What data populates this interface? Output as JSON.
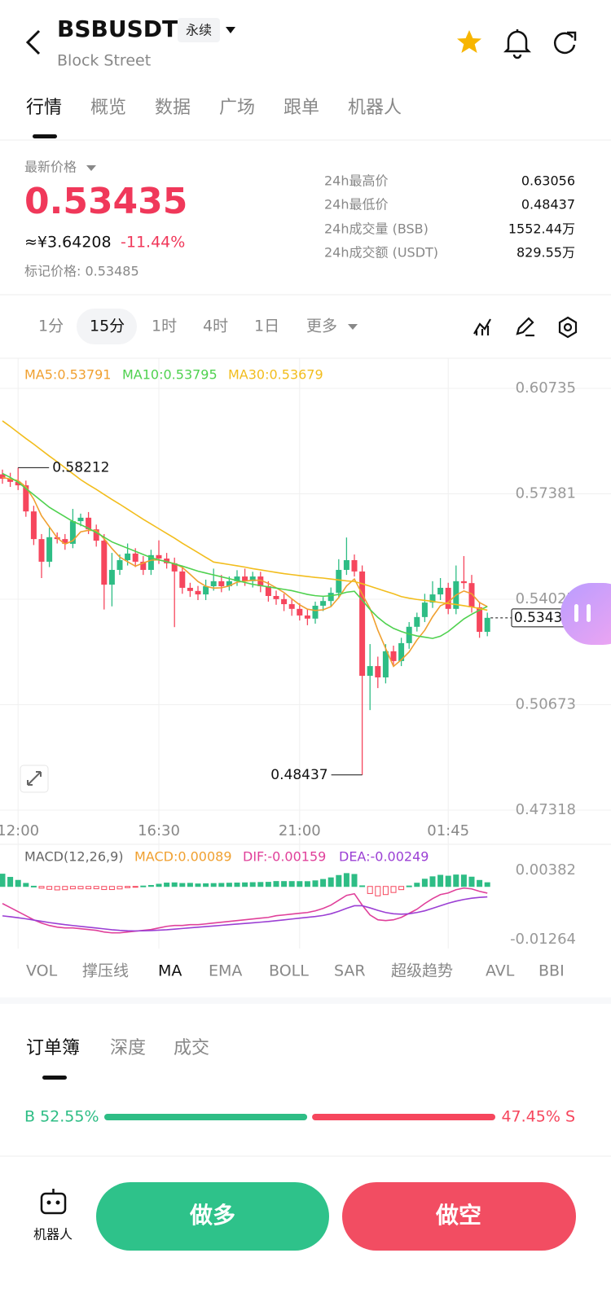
{
  "header": {
    "title": "BSBUSDT",
    "badge": "永续",
    "subtitle": "Block Street"
  },
  "tabs": [
    "行情",
    "概览",
    "数据",
    "广场",
    "跟单",
    "机器人"
  ],
  "price": {
    "label": "最新价格",
    "last": "0.53435",
    "cny": "≈¥3.64208",
    "change": "-11.44%",
    "mark": "标记价格: 0.53485"
  },
  "stats": [
    {
      "label": "24h最高价",
      "value": "0.63056"
    },
    {
      "label": "24h最低价",
      "value": "0.48437"
    },
    {
      "label": "24h成交量 (BSB)",
      "value": "1552.44万"
    },
    {
      "label": "24h成交额 (USDT)",
      "value": "829.55万"
    }
  ],
  "intervals": [
    "1分",
    "15分",
    "1时",
    "4时",
    "1日",
    "更多"
  ],
  "indicators": [
    "VOL",
    "撑压线",
    "MA",
    "EMA",
    "BOLL",
    "SAR",
    "超级趋势",
    "AVL",
    "BBI"
  ],
  "book_tabs": [
    "订单簿",
    "深度",
    "成交"
  ],
  "ratio": {
    "buy_label": "B 52.55%",
    "sell_label": "47.45% S",
    "buy": 52.55,
    "sell": 47.45,
    "buy_color": "#2ebd85",
    "sell_color": "#f6465d"
  },
  "actions": {
    "robot": "机器人",
    "long": "做多",
    "short": "做空"
  },
  "chart_data": [
    {
      "type": "candlestick",
      "up_color": "#2ebd85",
      "down_color": "#f6465d",
      "grid": true,
      "categories": [
        null,
        null,
        "12:00",
        null,
        null,
        null,
        null,
        null,
        null,
        null,
        null,
        null,
        null,
        null,
        null,
        null,
        null,
        null,
        null,
        null,
        "16:30",
        null,
        null,
        null,
        null,
        null,
        null,
        null,
        null,
        null,
        null,
        null,
        null,
        null,
        null,
        null,
        null,
        null,
        "21:00",
        null,
        null,
        null,
        null,
        null,
        null,
        null,
        null,
        null,
        null,
        null,
        null,
        null,
        null,
        null,
        null,
        null,
        null,
        "01:45",
        null,
        null,
        null,
        null,
        null
      ],
      "open": [
        0.58,
        0.5786,
        0.5776,
        0.5765,
        0.5682,
        0.5594,
        0.5522,
        0.56,
        0.5594,
        0.5579,
        0.5651,
        0.5662,
        0.5625,
        0.5589,
        0.5449,
        0.5496,
        0.5527,
        0.5548,
        0.5522,
        0.5496,
        0.5543,
        0.5532,
        0.5517,
        0.5491,
        0.5439,
        0.5429,
        0.5418,
        0.5444,
        0.546,
        0.5444,
        0.546,
        0.5475,
        0.546,
        0.5475,
        0.5444,
        0.5413,
        0.5403,
        0.5387,
        0.5372,
        0.5351,
        0.5341,
        0.5382,
        0.5397,
        0.5423,
        0.5496,
        0.5527,
        0.5491,
        0.5159,
        0.519,
        0.5154,
        0.5237,
        0.5206,
        0.5263,
        0.5315,
        0.5346,
        0.5392,
        0.5418,
        0.5439,
        0.5372,
        0.546,
        0.5454,
        0.5377,
        0.5299
      ],
      "high": [
        0.5815,
        0.5805,
        0.58212,
        0.578,
        0.57,
        0.561,
        0.563,
        0.5615,
        0.561,
        0.569,
        0.5675,
        0.568,
        0.564,
        0.561,
        0.555,
        0.5545,
        0.558,
        0.5565,
        0.554,
        0.556,
        0.559,
        0.555,
        0.5535,
        0.551,
        0.5455,
        0.5445,
        0.5465,
        0.55,
        0.548,
        0.5475,
        0.5495,
        0.55,
        0.549,
        0.549,
        0.546,
        0.543,
        0.542,
        0.5405,
        0.539,
        0.537,
        0.5395,
        0.541,
        0.544,
        0.553,
        0.5599,
        0.5545,
        0.551,
        0.526,
        0.522,
        0.526,
        0.5255,
        0.528,
        0.533,
        0.536,
        0.542,
        0.546,
        0.547,
        0.5455,
        0.551,
        0.554,
        0.548,
        0.5395,
        0.536
      ],
      "low": [
        0.577,
        0.576,
        0.575,
        0.5665,
        0.5575,
        0.547,
        0.5505,
        0.558,
        0.556,
        0.5565,
        0.5635,
        0.561,
        0.557,
        0.537,
        0.538,
        0.548,
        0.551,
        0.5505,
        0.548,
        0.548,
        0.5515,
        0.55,
        0.5314,
        0.542,
        0.541,
        0.54,
        0.54,
        0.543,
        0.5425,
        0.543,
        0.5445,
        0.5445,
        0.544,
        0.5425,
        0.5395,
        0.5385,
        0.5365,
        0.535,
        0.5335,
        0.532,
        0.5325,
        0.5365,
        0.538,
        0.5405,
        0.548,
        0.5475,
        0.48437,
        0.505,
        0.512,
        0.5135,
        0.519,
        0.519,
        0.5245,
        0.53,
        0.533,
        0.5375,
        0.54,
        0.5355,
        0.5355,
        0.5435,
        0.536,
        0.528,
        0.5285
      ],
      "close": [
        0.5786,
        0.5776,
        0.5765,
        0.5682,
        0.5594,
        0.5522,
        0.56,
        0.5594,
        0.5579,
        0.5651,
        0.5662,
        0.5625,
        0.5589,
        0.5449,
        0.5496,
        0.5527,
        0.5548,
        0.5522,
        0.5496,
        0.5543,
        0.5532,
        0.5517,
        0.5491,
        0.5439,
        0.5429,
        0.5418,
        0.5444,
        0.546,
        0.5444,
        0.546,
        0.5475,
        0.546,
        0.5475,
        0.5444,
        0.5413,
        0.5403,
        0.5387,
        0.5372,
        0.5351,
        0.5341,
        0.5382,
        0.5397,
        0.5423,
        0.5496,
        0.5527,
        0.5491,
        0.5159,
        0.519,
        0.5154,
        0.5237,
        0.5206,
        0.5263,
        0.5315,
        0.5346,
        0.5392,
        0.5418,
        0.5439,
        0.5372,
        0.546,
        0.5454,
        0.5377,
        0.5299,
        0.53435
      ],
      "series": [
        {
          "name": "MA5:0.53791",
          "color": "#f0a030",
          "values": [
            0.579,
            0.5785,
            0.578,
            0.576,
            0.5721,
            0.5668,
            0.5633,
            0.5598,
            0.5578,
            0.5589,
            0.5617,
            0.5622,
            0.5621,
            0.5595,
            0.5564,
            0.5537,
            0.5522,
            0.5508,
            0.5518,
            0.5527,
            0.5528,
            0.5522,
            0.5516,
            0.5504,
            0.5482,
            0.5459,
            0.5444,
            0.5438,
            0.5439,
            0.5445,
            0.5457,
            0.546,
            0.5463,
            0.5463,
            0.5453,
            0.5439,
            0.5424,
            0.5404,
            0.5385,
            0.5371,
            0.5367,
            0.5369,
            0.5379,
            0.5408,
            0.5445,
            0.5467,
            0.5419,
            0.5373,
            0.5304,
            0.5246,
            0.5189,
            0.521,
            0.5235,
            0.5273,
            0.5304,
            0.5347,
            0.5382,
            0.5393,
            0.5416,
            0.5429,
            0.542,
            0.5392,
            0.53791
          ]
        },
        {
          "name": "MA10:0.53795",
          "color": "#4fd14f",
          "values": [
            0.5803,
            0.579,
            0.5775,
            0.5755,
            0.5735,
            0.5715,
            0.5695,
            0.568,
            0.5665,
            0.565,
            0.564,
            0.5628,
            0.5615,
            0.56,
            0.5585,
            0.5575,
            0.5565,
            0.5555,
            0.5545,
            0.5535,
            0.5528,
            0.5522,
            0.5515,
            0.5508,
            0.55,
            0.5492,
            0.5486,
            0.548,
            0.5474,
            0.5468,
            0.5462,
            0.5456,
            0.545,
            0.5446,
            0.5442,
            0.5438,
            0.5434,
            0.543,
            0.5424,
            0.5418,
            0.5414,
            0.5412,
            0.5414,
            0.5418,
            0.5425,
            0.5428,
            0.54,
            0.537,
            0.5345,
            0.5325,
            0.531,
            0.53,
            0.5292,
            0.5286,
            0.5282,
            0.5278,
            0.5285,
            0.53,
            0.532,
            0.534,
            0.5355,
            0.5368,
            0.53795
          ]
        },
        {
          "name": "MA30:0.53679",
          "color": "#f2bd1d",
          "values": [
            0.597,
            0.5952,
            0.5933,
            0.5914,
            0.5896,
            0.5877,
            0.5858,
            0.584,
            0.5821,
            0.5802,
            0.5783,
            0.5767,
            0.5752,
            0.5736,
            0.572,
            0.5705,
            0.5689,
            0.5673,
            0.5657,
            0.5642,
            0.5627,
            0.5612,
            0.5597,
            0.5581,
            0.5566,
            0.5551,
            0.5536,
            0.5521,
            0.5517,
            0.5513,
            0.5509,
            0.5505,
            0.55,
            0.5496,
            0.5492,
            0.5488,
            0.5484,
            0.5481,
            0.5478,
            0.5475,
            0.5472,
            0.547,
            0.5467,
            0.5464,
            0.5461,
            0.5459,
            0.5452,
            0.5444,
            0.5436,
            0.5428,
            0.542,
            0.5411,
            0.5406,
            0.5402,
            0.5399,
            0.5396,
            0.5392,
            0.5389,
            0.5386,
            0.5382,
            0.5378,
            0.5373,
            0.53679
          ]
        }
      ],
      "ylim": [
        0.47059,
        0.61693
      ],
      "yticks": [
        0.47318,
        0.50673,
        0.54027,
        0.57381,
        0.60735
      ]
    },
    {
      "type": "macd",
      "title": "MACD(12,26,9)",
      "ylim": [
        -0.01477,
        0.00847
      ],
      "yticks": [
        -0.01264,
        0.00382
      ],
      "series": [
        {
          "name": "MACD:0.00089",
          "type": "bar",
          "color": "#f0a030",
          "values": [
            0.00293,
            0.00217,
            0.00145,
            0.00073,
            6e-05,
            -0.00041,
            -0.00069,
            -0.00083,
            -0.00077,
            -0.00057,
            -0.00057,
            -0.00056,
            -0.00055,
            -0.00074,
            -0.00074,
            -0.00059,
            -0.00029,
            -7e-05,
            0.0001,
            0.00024,
            0.00053,
            0.00081,
            0.00086,
            0.00071,
            0.00075,
            0.0006,
            0.00064,
            0.00069,
            0.00073,
            0.00078,
            0.00082,
            0.00086,
            0.00091,
            0.00095,
            0.00099,
            0.00118,
            0.00117,
            0.00117,
            0.00116,
            0.00115,
            0.00134,
            0.00167,
            0.00205,
            0.00261,
            0.00307,
            0.00286,
            0.00015,
            -0.00168,
            -0.00224,
            -0.00193,
            -0.00144,
            -0.00076,
            0.00011,
            0.00078,
            0.00173,
            0.0023,
            0.00266,
            0.00245,
            0.00273,
            0.00271,
            0.00222,
            0.00144,
            0.00089
          ]
        },
        {
          "name": "DIF:-0.00159",
          "type": "line",
          "color": "#e0409a",
          "values": [
            -0.00407,
            -0.00503,
            -0.006,
            -0.00697,
            -0.00794,
            -0.00871,
            -0.00929,
            -0.00968,
            -0.00987,
            -0.00987,
            -0.01007,
            -0.01026,
            -0.01045,
            -0.01084,
            -0.01104,
            -0.01104,
            -0.01084,
            -0.01065,
            -0.01045,
            -0.01026,
            -0.00987,
            -0.00949,
            -0.00929,
            -0.00929,
            -0.0091,
            -0.0091,
            -0.00891,
            -0.00871,
            -0.00852,
            -0.00832,
            -0.00813,
            -0.00794,
            -0.00774,
            -0.00755,
            -0.00736,
            -0.00697,
            -0.00678,
            -0.00658,
            -0.00639,
            -0.0062,
            -0.00581,
            -0.00523,
            -0.00445,
            -0.00329,
            -0.00213,
            -0.00174,
            -0.00445,
            -0.00678,
            -0.00794,
            -0.00813,
            -0.00794,
            -0.00736,
            -0.00639,
            -0.00542,
            -0.00407,
            -0.0029,
            -0.00194,
            -0.00155,
            -0.00077,
            -0.00039,
            -0.00058,
            -0.00116,
            -0.00159
          ]
        },
        {
          "name": "DEA:-0.00249",
          "type": "line",
          "color": "#9b3fd4",
          "values": [
            -0.007,
            -0.0072,
            -0.00745,
            -0.0077,
            -0.008,
            -0.0083,
            -0.0086,
            -0.00885,
            -0.0091,
            -0.0093,
            -0.0095,
            -0.0097,
            -0.0099,
            -0.0101,
            -0.0103,
            -0.01045,
            -0.01055,
            -0.01058,
            -0.01055,
            -0.0105,
            -0.0104,
            -0.0103,
            -0.01015,
            -0.01,
            -0.00985,
            -0.0097,
            -0.00955,
            -0.0094,
            -0.00925,
            -0.0091,
            -0.00895,
            -0.0088,
            -0.00865,
            -0.0085,
            -0.00835,
            -0.00815,
            -0.00795,
            -0.00775,
            -0.00755,
            -0.00735,
            -0.00715,
            -0.0069,
            -0.0065,
            -0.0059,
            -0.0052,
            -0.0046,
            -0.0046,
            -0.0051,
            -0.0057,
            -0.0062,
            -0.0065,
            -0.0066,
            -0.0065,
            -0.0062,
            -0.0058,
            -0.0052,
            -0.0046,
            -0.004,
            -0.0035,
            -0.0031,
            -0.0028,
            -0.0026,
            -0.00249
          ]
        }
      ]
    }
  ]
}
